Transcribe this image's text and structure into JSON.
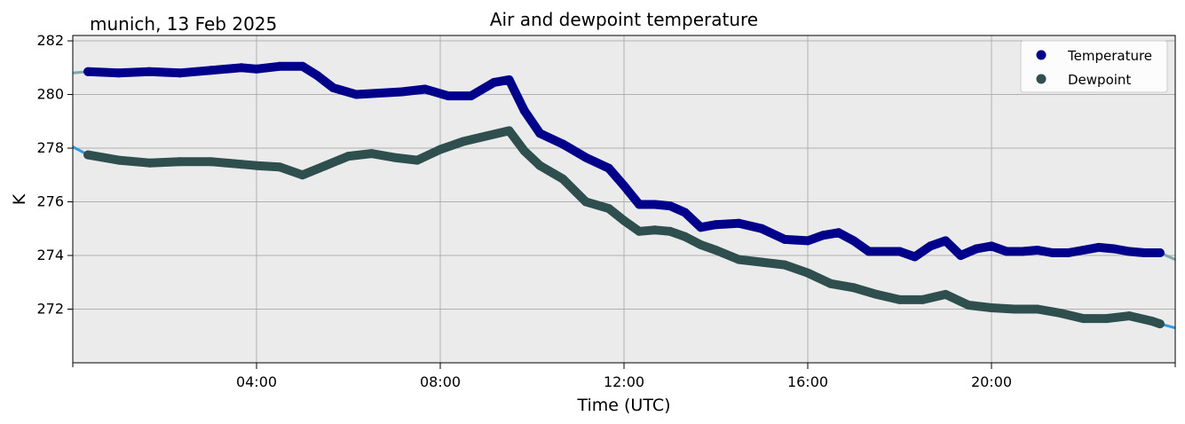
{
  "chart_data": {
    "type": "line",
    "title": "Air and dewpoint temperature",
    "subtitle": "munich, 13 Feb 2025",
    "xlabel": "Time (UTC)",
    "ylabel": "K",
    "x_unit": "hours UTC",
    "xlim": [
      0,
      24
    ],
    "ylim": [
      270,
      282.2
    ],
    "grid": true,
    "legend_position": "top-right",
    "x_ticks": [
      {
        "value": 4,
        "label": "04:00"
      },
      {
        "value": 8,
        "label": "08:00"
      },
      {
        "value": 12,
        "label": "12:00"
      },
      {
        "value": 16,
        "label": "16:00"
      },
      {
        "value": 20,
        "label": "20:00"
      }
    ],
    "x_minor_ticks": [
      0,
      24
    ],
    "y_ticks": [
      {
        "value": 272,
        "label": "272"
      },
      {
        "value": 274,
        "label": "274"
      },
      {
        "value": 276,
        "label": "276"
      },
      {
        "value": 278,
        "label": "278"
      },
      {
        "value": 280,
        "label": "280"
      },
      {
        "value": 282,
        "label": "282"
      }
    ],
    "series": [
      {
        "name": "Temperature",
        "marker_color": "#00008b",
        "raw_color": "#7fa8a8",
        "x": [
          0.33,
          1,
          1.67,
          2.33,
          3,
          3.67,
          4,
          4.5,
          5,
          5.33,
          5.67,
          6.17,
          6.67,
          7.17,
          7.67,
          8.17,
          8.67,
          9.17,
          9.5,
          9.83,
          10.17,
          10.67,
          11.17,
          11.67,
          12,
          12.33,
          12.67,
          13,
          13.33,
          13.67,
          14,
          14.5,
          15,
          15.5,
          16,
          16.33,
          16.67,
          17,
          17.33,
          17.67,
          18,
          18.33,
          18.67,
          19,
          19.33,
          19.67,
          20,
          20.33,
          20.67,
          21,
          21.33,
          21.67,
          22,
          22.33,
          22.67,
          23,
          23.33,
          23.67
        ],
        "y": [
          280.85,
          280.8,
          280.85,
          280.8,
          280.9,
          281.0,
          280.95,
          281.05,
          281.05,
          280.7,
          280.25,
          280.0,
          280.05,
          280.1,
          280.2,
          279.95,
          279.95,
          280.45,
          280.55,
          279.4,
          278.55,
          278.15,
          277.65,
          277.25,
          276.6,
          275.9,
          275.9,
          275.85,
          275.6,
          275.05,
          275.15,
          275.2,
          275.0,
          274.6,
          274.55,
          274.75,
          274.85,
          274.55,
          274.15,
          274.15,
          274.15,
          273.95,
          274.35,
          274.55,
          274.0,
          274.25,
          274.35,
          274.15,
          274.15,
          274.2,
          274.1,
          274.1,
          274.2,
          274.3,
          274.25,
          274.15,
          274.1,
          274.1
        ],
        "raw_x": [
          0,
          0.33,
          24
        ],
        "raw_y": [
          280.8,
          280.85,
          273.85
        ]
      },
      {
        "name": "Dewpoint",
        "marker_color": "#2f4f4f",
        "raw_color": "#2b9be6",
        "x": [
          0.33,
          1,
          1.67,
          2.33,
          3,
          3.67,
          4,
          4.5,
          5,
          5.5,
          6,
          6.5,
          7,
          7.5,
          8,
          8.5,
          9,
          9.5,
          9.83,
          10.17,
          10.67,
          11.17,
          11.67,
          12,
          12.33,
          12.67,
          13,
          13.33,
          13.67,
          14,
          14.5,
          15,
          15.5,
          16,
          16.5,
          17,
          17.5,
          18,
          18.5,
          19,
          19.5,
          20,
          20.5,
          21,
          21.5,
          22,
          22.5,
          23,
          23.5,
          23.67
        ],
        "y": [
          277.75,
          277.55,
          277.45,
          277.5,
          277.5,
          277.4,
          277.35,
          277.3,
          277.0,
          277.35,
          277.7,
          277.8,
          277.65,
          277.55,
          277.95,
          278.25,
          278.45,
          278.65,
          277.9,
          277.35,
          276.85,
          276.0,
          275.75,
          275.3,
          274.9,
          274.95,
          274.9,
          274.7,
          274.4,
          274.2,
          273.85,
          273.75,
          273.65,
          273.35,
          272.95,
          272.8,
          272.55,
          272.35,
          272.35,
          272.55,
          272.15,
          272.05,
          272.0,
          272.0,
          271.85,
          271.65,
          271.65,
          271.75,
          271.55,
          271.45
        ],
        "raw_x": [
          0,
          0.33,
          24
        ],
        "raw_y": [
          278.05,
          277.8,
          271.3
        ]
      }
    ]
  }
}
